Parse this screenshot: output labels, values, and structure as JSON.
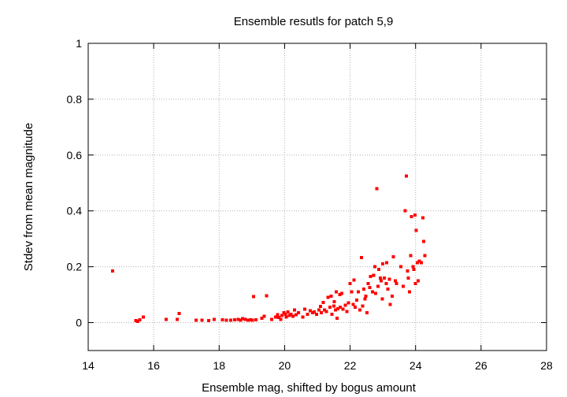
{
  "chart_data": {
    "type": "scatter",
    "title": "Ensemble resutls for patch 5,9",
    "xlabel": "Ensemble mag, shifted by bogus amount",
    "ylabel": "Stdev from mean magnitude",
    "xlim": [
      14,
      28
    ],
    "ylim": [
      -0.1,
      1
    ],
    "xticks": [
      14,
      16,
      18,
      20,
      22,
      24,
      26,
      28
    ],
    "yticks": [
      0,
      0.2,
      0.4,
      0.6,
      0.8,
      1
    ],
    "ytick_labels": [
      "0",
      "0.2",
      "0.4",
      "0.6",
      "0.8",
      "1"
    ],
    "xtick_labels": [
      "14",
      "16",
      "18",
      "20",
      "22",
      "24",
      "26",
      "28"
    ],
    "grid": true,
    "point_color": "#ff0000",
    "series": [
      {
        "points": [
          [
            14.75,
            0.185
          ],
          [
            15.45,
            0.007
          ],
          [
            15.52,
            0.005
          ],
          [
            15.58,
            0.01
          ],
          [
            15.68,
            0.02
          ],
          [
            16.38,
            0.012
          ],
          [
            16.72,
            0.012
          ],
          [
            16.78,
            0.032
          ],
          [
            17.3,
            0.009
          ],
          [
            17.48,
            0.008
          ],
          [
            17.68,
            0.007
          ],
          [
            17.85,
            0.012
          ],
          [
            18.1,
            0.01
          ],
          [
            18.22,
            0.009
          ],
          [
            18.35,
            0.008
          ],
          [
            18.48,
            0.01
          ],
          [
            18.58,
            0.012
          ],
          [
            18.65,
            0.008
          ],
          [
            18.72,
            0.014
          ],
          [
            18.8,
            0.012
          ],
          [
            18.88,
            0.009
          ],
          [
            18.95,
            0.01
          ],
          [
            19.02,
            0.008
          ],
          [
            19.05,
            0.093
          ],
          [
            19.12,
            0.01
          ],
          [
            19.3,
            0.015
          ],
          [
            19.38,
            0.022
          ],
          [
            19.45,
            0.096
          ],
          [
            19.6,
            0.012
          ],
          [
            19.72,
            0.02
          ],
          [
            19.78,
            0.028
          ],
          [
            19.82,
            0.018
          ],
          [
            19.88,
            0.012
          ],
          [
            19.92,
            0.025
          ],
          [
            19.98,
            0.035
          ],
          [
            20.02,
            0.03
          ],
          [
            20.05,
            0.02
          ],
          [
            20.1,
            0.038
          ],
          [
            20.15,
            0.025
          ],
          [
            20.2,
            0.03
          ],
          [
            20.25,
            0.022
          ],
          [
            20.3,
            0.045
          ],
          [
            20.35,
            0.028
          ],
          [
            20.42,
            0.035
          ],
          [
            20.55,
            0.02
          ],
          [
            20.62,
            0.048
          ],
          [
            20.7,
            0.03
          ],
          [
            20.78,
            0.042
          ],
          [
            20.85,
            0.035
          ],
          [
            20.9,
            0.038
          ],
          [
            20.98,
            0.03
          ],
          [
            21.05,
            0.045
          ],
          [
            21.1,
            0.058
          ],
          [
            21.12,
            0.035
          ],
          [
            21.18,
            0.072
          ],
          [
            21.22,
            0.045
          ],
          [
            21.28,
            0.04
          ],
          [
            21.32,
            0.09
          ],
          [
            21.38,
            0.055
          ],
          [
            21.42,
            0.095
          ],
          [
            21.45,
            0.03
          ],
          [
            21.5,
            0.06
          ],
          [
            21.52,
            0.075
          ],
          [
            21.55,
            0.045
          ],
          [
            21.58,
            0.11
          ],
          [
            21.6,
            0.015
          ],
          [
            21.62,
            0.05
          ],
          [
            21.68,
            0.1
          ],
          [
            21.7,
            0.055
          ],
          [
            21.75,
            0.105
          ],
          [
            21.78,
            0.048
          ],
          [
            21.85,
            0.062
          ],
          [
            21.9,
            0.04
          ],
          [
            21.95,
            0.07
          ],
          [
            22.0,
            0.14
          ],
          [
            22.05,
            0.11
          ],
          [
            22.1,
            0.065
          ],
          [
            22.12,
            0.152
          ],
          [
            22.15,
            0.055
          ],
          [
            22.2,
            0.08
          ],
          [
            22.25,
            0.11
          ],
          [
            22.3,
            0.045
          ],
          [
            22.35,
            0.233
          ],
          [
            22.38,
            0.06
          ],
          [
            22.42,
            0.12
          ],
          [
            22.45,
            0.085
          ],
          [
            22.48,
            0.095
          ],
          [
            22.52,
            0.035
          ],
          [
            22.55,
            0.14
          ],
          [
            22.6,
            0.125
          ],
          [
            22.62,
            0.165
          ],
          [
            22.68,
            0.11
          ],
          [
            22.72,
            0.17
          ],
          [
            22.75,
            0.2
          ],
          [
            22.78,
            0.105
          ],
          [
            22.82,
            0.48
          ],
          [
            22.85,
            0.13
          ],
          [
            22.88,
            0.19
          ],
          [
            22.92,
            0.16
          ],
          [
            22.95,
            0.15
          ],
          [
            22.98,
            0.085
          ],
          [
            23.0,
            0.21
          ],
          [
            23.05,
            0.16
          ],
          [
            23.1,
            0.14
          ],
          [
            23.12,
            0.215
          ],
          [
            23.15,
            0.12
          ],
          [
            23.2,
            0.155
          ],
          [
            23.22,
            0.065
          ],
          [
            23.28,
            0.095
          ],
          [
            23.32,
            0.235
          ],
          [
            23.38,
            0.15
          ],
          [
            23.42,
            0.14
          ],
          [
            23.55,
            0.2
          ],
          [
            23.62,
            0.13
          ],
          [
            23.68,
            0.4
          ],
          [
            23.72,
            0.525
          ],
          [
            23.75,
            0.185
          ],
          [
            23.78,
            0.16
          ],
          [
            23.82,
            0.11
          ],
          [
            23.85,
            0.24
          ],
          [
            23.88,
            0.38
          ],
          [
            23.92,
            0.2
          ],
          [
            23.95,
            0.19
          ],
          [
            23.98,
            0.385
          ],
          [
            24.0,
            0.14
          ],
          [
            24.02,
            0.33
          ],
          [
            24.05,
            0.215
          ],
          [
            24.08,
            0.15
          ],
          [
            24.12,
            0.22
          ],
          [
            24.18,
            0.215
          ],
          [
            24.22,
            0.375
          ],
          [
            24.25,
            0.29
          ],
          [
            24.28,
            0.24
          ]
        ]
      }
    ]
  }
}
